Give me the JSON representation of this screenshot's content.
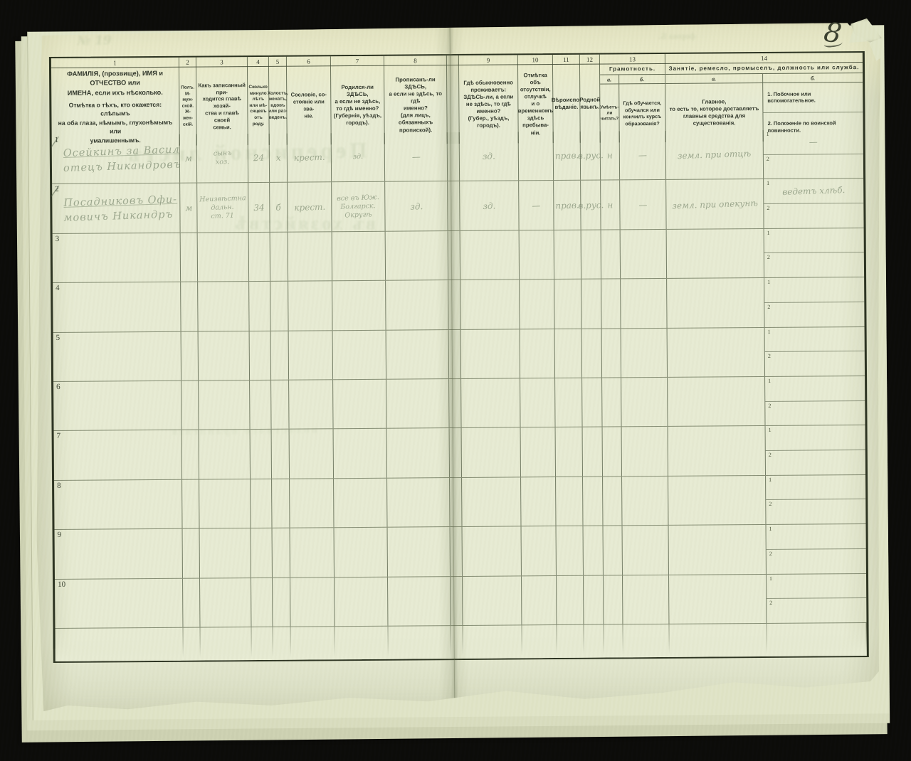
{
  "page": {
    "number": "8",
    "paper_color": "#e7ebd3",
    "background_color": "#0a0a08",
    "ink_color": "#2f352a",
    "handwriting_color": "#6c7c62"
  },
  "showthrough_ghosts": [
    {
      "text": "Переписной листъ"
    },
    {
      "text": "въ хозяйствѣ"
    },
    {
      "text": "№ 19"
    },
    {
      "text": "форма Б."
    },
    {
      "text": "волостного правленія"
    }
  ],
  "table": {
    "column_numbers": [
      "1",
      "2",
      "3",
      "4",
      "5",
      "6",
      "7",
      "8",
      "9",
      "10",
      "11",
      "12",
      "13",
      "14"
    ],
    "headers": {
      "col1_main": "ФАМИЛІЯ, (прозвище), ИМЯ и ОТЧЕСТВО или\nИМЕНА, если ихъ нѣсколько.",
      "col1_note": "Отмѣтка о тѣхъ, кто окажется: слѣпымъ\nна оба глаза, нѣмымъ, глухонѣмымъ или\nумалишеннымъ.",
      "col2": "Полъ.\nМ-муж-\nской.\nЖ-жен-\nскій.",
      "col3": "Какъ записанный при-\nходится главѣ хозяй-\nства и главѣ своей\nсемьи.",
      "col4": "Сколько\nминуло\nлѣтъ\nили мѣ-\nсяцевъ\nотъ роду.",
      "col5": "Холостъ,\nженатъ,\nвдовъ\nили раз-\nведенъ.",
      "col6": "Сословіе, со-\nстояніе или зва-\nніе.",
      "col7": "Родился-ли ЗДѢСЬ,\nа если не здѣсь,\nто гдѣ именно?\n(Губернія, уѣздъ, городъ).",
      "col8": "Прописанъ-ли ЗДѢСЬ,\nа если не здѣсь, то гдѣ\nименно?\n(для лицъ, обязанныхъ\nпропиской).",
      "col9": "Гдѣ обыкновенно\nпроживаетъ:\nЗДѢСЬ-ли, а если\nне здѣсь, то гдѣ\nименно?\n(Губер., уѣздъ, городъ).",
      "col10": "Отмѣтка объ\nотсутствіи, отлучкѣ\nи о временномъ\nздѣсь пребыва-\nніи.",
      "col11": "Вѣроиспо-\nвѣданіе.",
      "col12": "Родной\nязыкъ."
    },
    "literacy": {
      "title": "Грамотность.",
      "a_label": "а.",
      "b_label": "б.",
      "a_desc": "Умѣетъ-\nли\nчитать?",
      "b_desc": "Гдѣ обучается,\nобучался или\nкончилъ курсъ\nобразованія?"
    },
    "occupation": {
      "title": "Занятіе, ремесло, промыселъ, должность или служба.",
      "a_label": "а.",
      "b_label": "б.",
      "a_desc": "Главное,\nто есть то, которое доставляетъ\nглавныя средства для существованія.",
      "b_desc_1": "1.  Побочное или вспомогательное.",
      "b_desc_2": "2.  Положеніе по воинской повинности."
    },
    "sub_markers": [
      "1",
      "2"
    ],
    "rows": [
      {
        "num": "1",
        "tally": true,
        "c1": [
          "Осейкинъ за Васил",
          "отецъ Никандровъ"
        ],
        "c2": "м",
        "c3": [
          "сынъ",
          "хоз."
        ],
        "c4": "24",
        "c5": "х",
        "c6": "крест.",
        "c7": [
          "зд."
        ],
        "c8": "—",
        "c9": "зд.",
        "c10": "",
        "c11": "прав.",
        "c12": "в.рус.",
        "c13a": "н",
        "c13b": "—",
        "c14a": "земл. при отцѣ",
        "c14b1": "—",
        "c14b2": ""
      },
      {
        "num": "2",
        "tally": true,
        "c1": [
          "Посадниковъ Офи-",
          "мовичъ Никандръ"
        ],
        "c2": "м",
        "c3": [
          "Неизвѣстна",
          "дальн.",
          "ст. 71"
        ],
        "c4": "34",
        "c5": "б",
        "c6": "крест.",
        "c7": [
          "все въ Юж.",
          "Болгарск.",
          "Округѣ"
        ],
        "c8": "зд.",
        "c9": "зд.",
        "c10": "—",
        "c11": "прав.",
        "c12": "в.рус.",
        "c13a": "н",
        "c13b": "—",
        "c14a": "земл. при опекунѣ",
        "c14b1": "ведетъ хлѣб.",
        "c14b2": ""
      },
      {
        "num": "3",
        "tally": false,
        "c1": [],
        "c2": "",
        "c3": [],
        "c4": "",
        "c5": "",
        "c6": "",
        "c7": [],
        "c8": "",
        "c9": "",
        "c10": "",
        "c11": "",
        "c12": "",
        "c13a": "",
        "c13b": "",
        "c14a": "",
        "c14b1": "",
        "c14b2": ""
      },
      {
        "num": "4",
        "tally": false,
        "c1": [],
        "c2": "",
        "c3": [],
        "c4": "",
        "c5": "",
        "c6": "",
        "c7": [],
        "c8": "",
        "c9": "",
        "c10": "",
        "c11": "",
        "c12": "",
        "c13a": "",
        "c13b": "",
        "c14a": "",
        "c14b1": "",
        "c14b2": ""
      },
      {
        "num": "5",
        "tally": false,
        "c1": [],
        "c2": "",
        "c3": [],
        "c4": "",
        "c5": "",
        "c6": "",
        "c7": [],
        "c8": "",
        "c9": "",
        "c10": "",
        "c11": "",
        "c12": "",
        "c13a": "",
        "c13b": "",
        "c14a": "",
        "c14b1": "",
        "c14b2": ""
      },
      {
        "num": "6",
        "tally": false,
        "c1": [],
        "c2": "",
        "c3": [],
        "c4": "",
        "c5": "",
        "c6": "",
        "c7": [],
        "c8": "",
        "c9": "",
        "c10": "",
        "c11": "",
        "c12": "",
        "c13a": "",
        "c13b": "",
        "c14a": "",
        "c14b1": "",
        "c14b2": ""
      },
      {
        "num": "7",
        "tally": false,
        "c1": [],
        "c2": "",
        "c3": [],
        "c4": "",
        "c5": "",
        "c6": "",
        "c7": [],
        "c8": "",
        "c9": "",
        "c10": "",
        "c11": "",
        "c12": "",
        "c13a": "",
        "c13b": "",
        "c14a": "",
        "c14b1": "",
        "c14b2": ""
      },
      {
        "num": "8",
        "tally": false,
        "c1": [],
        "c2": "",
        "c3": [],
        "c4": "",
        "c5": "",
        "c6": "",
        "c7": [],
        "c8": "",
        "c9": "",
        "c10": "",
        "c11": "",
        "c12": "",
        "c13a": "",
        "c13b": "",
        "c14a": "",
        "c14b1": "",
        "c14b2": ""
      },
      {
        "num": "9",
        "tally": false,
        "c1": [],
        "c2": "",
        "c3": [],
        "c4": "",
        "c5": "",
        "c6": "",
        "c7": [],
        "c8": "",
        "c9": "",
        "c10": "",
        "c11": "",
        "c12": "",
        "c13a": "",
        "c13b": "",
        "c14a": "",
        "c14b1": "",
        "c14b2": ""
      },
      {
        "num": "10",
        "tally": false,
        "c1": [],
        "c2": "",
        "c3": [],
        "c4": "",
        "c5": "",
        "c6": "",
        "c7": [],
        "c8": "",
        "c9": "",
        "c10": "",
        "c11": "",
        "c12": "",
        "c13a": "",
        "c13b": "",
        "c14a": "",
        "c14b1": "",
        "c14b2": ""
      }
    ]
  }
}
